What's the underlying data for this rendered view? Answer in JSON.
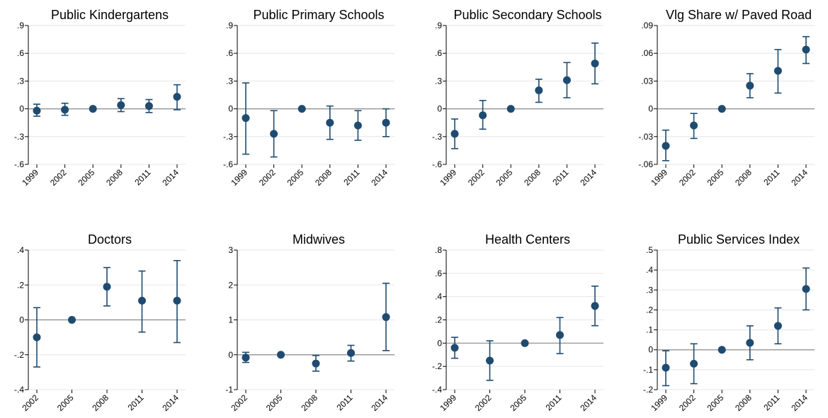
{
  "colors": {
    "marker": "#1f4b70",
    "grid": "#e6e6e6",
    "zero_line": "#8c8c8c",
    "axis": "#000000"
  },
  "chart_data": [
    {
      "type": "scatter",
      "title": "Public Kindergartens",
      "grid": true,
      "ylim": [
        -0.6,
        0.9
      ],
      "yticks": [
        -0.6,
        -0.3,
        0,
        0.3,
        0.6,
        0.9
      ],
      "yticklabels": [
        "-.6",
        "-.3",
        "0",
        ".3",
        ".6",
        ".9"
      ],
      "categories": [
        "1999",
        "2002",
        "2005",
        "2008",
        "2011",
        "2014"
      ],
      "values": [
        -0.02,
        -0.01,
        0,
        0.04,
        0.03,
        0.13
      ],
      "ci_low": [
        -0.08,
        -0.07,
        0,
        -0.03,
        -0.04,
        -0.01
      ],
      "ci_high": [
        0.05,
        0.06,
        0,
        0.11,
        0.1,
        0.26
      ]
    },
    {
      "type": "scatter",
      "title": "Public Primary Schools",
      "grid": true,
      "ylim": [
        -0.6,
        0.9
      ],
      "yticks": [
        -0.6,
        -0.3,
        0,
        0.3,
        0.6,
        0.9
      ],
      "yticklabels": [
        "-.6",
        "-.3",
        "0",
        ".3",
        ".6",
        ".9"
      ],
      "categories": [
        "1999",
        "2002",
        "2005",
        "2008",
        "2011",
        "2014"
      ],
      "values": [
        -0.1,
        -0.27,
        0,
        -0.15,
        -0.18,
        -0.15
      ],
      "ci_low": [
        -0.49,
        -0.52,
        0,
        -0.33,
        -0.34,
        -0.3
      ],
      "ci_high": [
        0.28,
        -0.02,
        0,
        0.03,
        -0.02,
        0.0
      ]
    },
    {
      "type": "scatter",
      "title": "Public Secondary Schools",
      "grid": true,
      "ylim": [
        -0.6,
        0.9
      ],
      "yticks": [
        -0.6,
        -0.3,
        0,
        0.3,
        0.6,
        0.9
      ],
      "yticklabels": [
        "-.6",
        "-.3",
        "0",
        ".3",
        ".6",
        ".9"
      ],
      "categories": [
        "1999",
        "2002",
        "2005",
        "2008",
        "2011",
        "2014"
      ],
      "values": [
        -0.27,
        -0.07,
        0,
        0.2,
        0.31,
        0.49
      ],
      "ci_low": [
        -0.43,
        -0.22,
        0,
        0.07,
        0.12,
        0.27
      ],
      "ci_high": [
        -0.11,
        0.09,
        0,
        0.32,
        0.5,
        0.71
      ]
    },
    {
      "type": "scatter",
      "title": "Vlg Share w/ Paved Road",
      "grid": true,
      "ylim": [
        -0.06,
        0.09
      ],
      "yticks": [
        -0.06,
        -0.03,
        0,
        0.03,
        0.06,
        0.09
      ],
      "yticklabels": [
        "-.06",
        "-.03",
        "0",
        ".03",
        ".06",
        ".09"
      ],
      "categories": [
        "1999",
        "2002",
        "2005",
        "2008",
        "2011",
        "2014"
      ],
      "values": [
        -0.04,
        -0.018,
        0,
        0.025,
        0.041,
        0.064
      ],
      "ci_low": [
        -0.056,
        -0.032,
        0,
        0.012,
        0.017,
        0.049
      ],
      "ci_high": [
        -0.023,
        -0.005,
        0,
        0.038,
        0.064,
        0.078
      ]
    },
    {
      "type": "scatter",
      "title": "Doctors",
      "grid": true,
      "ylim": [
        -0.4,
        0.4
      ],
      "yticks": [
        -0.4,
        -0.2,
        0,
        0.2,
        0.4
      ],
      "yticklabels": [
        "-.4",
        "-.2",
        "0",
        ".2",
        ".4"
      ],
      "categories": [
        "2002",
        "2005",
        "2008",
        "2011",
        "2014"
      ],
      "values": [
        -0.1,
        0,
        0.19,
        0.11,
        0.11
      ],
      "ci_low": [
        -0.27,
        0,
        0.08,
        -0.07,
        -0.13
      ],
      "ci_high": [
        0.07,
        0,
        0.3,
        0.28,
        0.34
      ]
    },
    {
      "type": "scatter",
      "title": "Midwives",
      "grid": true,
      "ylim": [
        -1,
        3
      ],
      "yticks": [
        -1,
        0,
        1,
        2,
        3
      ],
      "yticklabels": [
        "-1",
        "0",
        "1",
        "2",
        "3"
      ],
      "categories": [
        "2002",
        "2005",
        "2008",
        "2011",
        "2014"
      ],
      "values": [
        -0.08,
        0,
        -0.25,
        0.05,
        1.08
      ],
      "ci_low": [
        -0.22,
        0,
        -0.47,
        -0.18,
        0.12
      ],
      "ci_high": [
        0.07,
        0,
        -0.02,
        0.27,
        2.05
      ]
    },
    {
      "type": "scatter",
      "title": "Health Centers",
      "grid": true,
      "ylim": [
        -0.4,
        0.8
      ],
      "yticks": [
        -0.4,
        -0.2,
        0,
        0.2,
        0.4,
        0.6,
        0.8
      ],
      "yticklabels": [
        "-.4",
        "-.2",
        "0",
        ".2",
        ".4",
        ".6",
        ".8"
      ],
      "categories": [
        "1999",
        "2002",
        "2005",
        "2011",
        "2014"
      ],
      "values": [
        -0.04,
        -0.15,
        0,
        0.07,
        0.32
      ],
      "ci_low": [
        -0.13,
        -0.32,
        0,
        -0.09,
        0.15
      ],
      "ci_high": [
        0.05,
        0.02,
        0,
        0.22,
        0.49
      ]
    },
    {
      "type": "scatter",
      "title": "Public Services Index",
      "grid": true,
      "ylim": [
        -0.2,
        0.5
      ],
      "yticks": [
        -0.2,
        -0.1,
        0,
        0.1,
        0.2,
        0.3,
        0.4,
        0.5
      ],
      "yticklabels": [
        "-.2",
        "-.1",
        "0",
        ".1",
        ".2",
        ".3",
        ".4",
        ".5"
      ],
      "categories": [
        "1999",
        "2002",
        "2005",
        "2008",
        "2011",
        "2014"
      ],
      "values": [
        -0.09,
        -0.07,
        0,
        0.035,
        0.12,
        0.305
      ],
      "ci_low": [
        -0.18,
        -0.17,
        0,
        -0.05,
        0.03,
        0.2
      ],
      "ci_high": [
        -0.005,
        0.03,
        0,
        0.12,
        0.21,
        0.41
      ]
    }
  ]
}
